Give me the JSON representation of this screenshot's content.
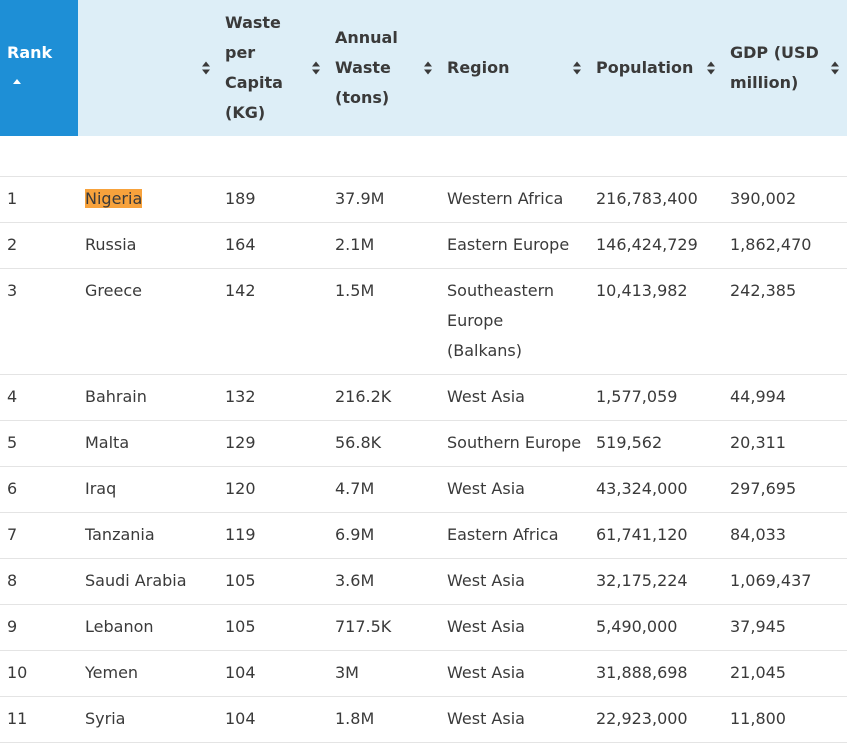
{
  "table": {
    "headers": {
      "rank": "Rank",
      "country": "",
      "waste_per_capita": "Waste per Capita (KG)",
      "annual_waste": "Annual Waste (tons)",
      "region": "Region",
      "population": "Population",
      "gdp": "GDP (USD million)"
    },
    "sorted_column": "rank",
    "sort_direction": "ascending",
    "highlight_color": "#f7a23c",
    "active_header_color": "#1e8fd6",
    "rows": [
      {
        "rank": "1",
        "country": "Nigeria",
        "waste": "189",
        "annual": "37.9M",
        "region": "Western Africa",
        "population": "216,783,400",
        "gdp": "390,002",
        "highlighted": true
      },
      {
        "rank": "2",
        "country": "Russia",
        "waste": "164",
        "annual": "2.1M",
        "region": "Eastern Europe",
        "population": "146,424,729",
        "gdp": "1,862,470"
      },
      {
        "rank": "3",
        "country": "Greece",
        "waste": "142",
        "annual": "1.5M",
        "region": "Southeastern Europe (Balkans)",
        "population": "10,413,982",
        "gdp": "242,385"
      },
      {
        "rank": "4",
        "country": "Bahrain",
        "waste": "132",
        "annual": "216.2K",
        "region": "West Asia",
        "population": "1,577,059",
        "gdp": "44,994"
      },
      {
        "rank": "5",
        "country": "Malta",
        "waste": "129",
        "annual": "56.8K",
        "region": "Southern Europe",
        "population": "519,562",
        "gdp": "20,311"
      },
      {
        "rank": "6",
        "country": "Iraq",
        "waste": "120",
        "annual": "4.7M",
        "region": "West Asia",
        "population": "43,324,000",
        "gdp": "297,695"
      },
      {
        "rank": "7",
        "country": "Tanzania",
        "waste": "119",
        "annual": "6.9M",
        "region": "Eastern Africa",
        "population": "61,741,120",
        "gdp": "84,033"
      },
      {
        "rank": "8",
        "country": "Saudi Arabia",
        "waste": "105",
        "annual": "3.6M",
        "region": "West Asia",
        "population": "32,175,224",
        "gdp": "1,069,437"
      },
      {
        "rank": "9",
        "country": "Lebanon",
        "waste": "105",
        "annual": "717.5K",
        "region": "West Asia",
        "population": "5,490,000",
        "gdp": "37,945"
      },
      {
        "rank": "10",
        "country": "Yemen",
        "waste": "104",
        "annual": "3M",
        "region": "West Asia",
        "population": "31,888,698",
        "gdp": "21,045"
      },
      {
        "rank": "11",
        "country": "Syria",
        "waste": "104",
        "annual": "1.8M",
        "region": "West Asia",
        "population": "22,923,000",
        "gdp": "11,800"
      }
    ]
  }
}
